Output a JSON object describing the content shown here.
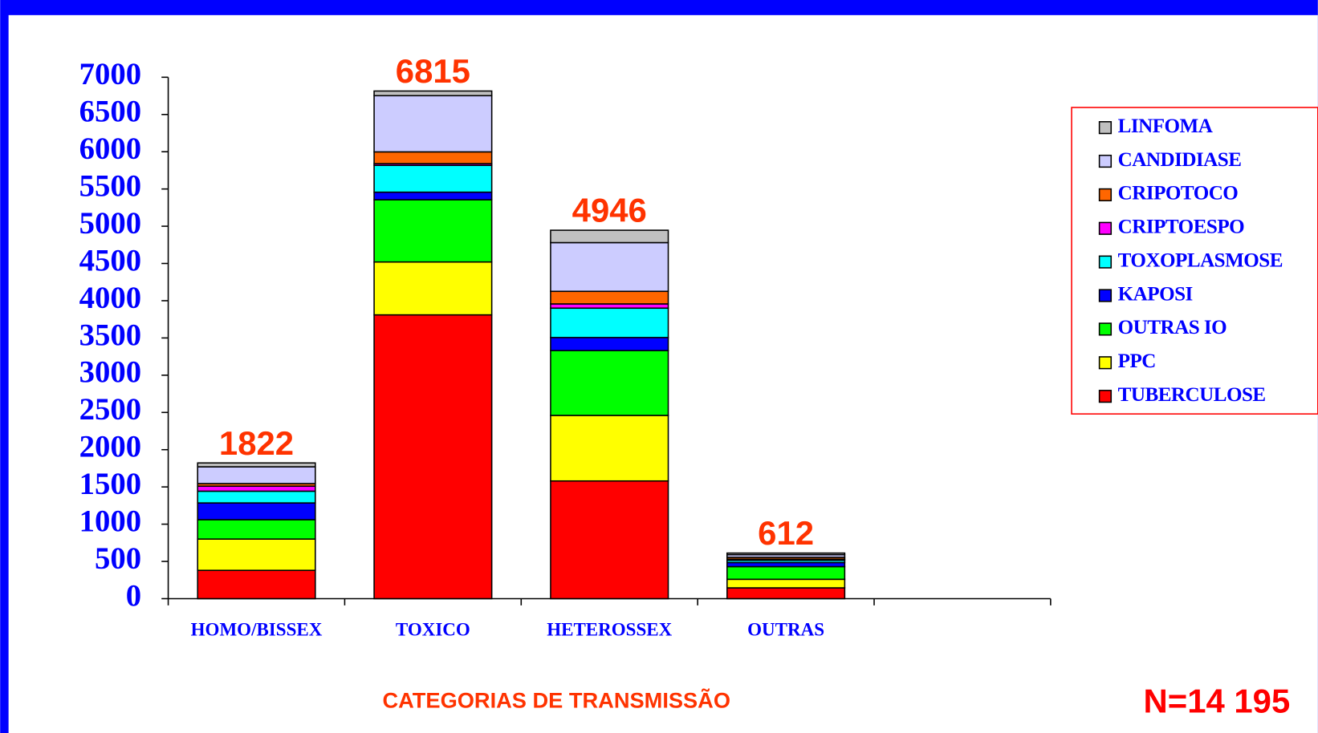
{
  "chart_data": {
    "type": "stacked_bar",
    "categories": [
      "HOMO/BISSEX",
      "TOXICO",
      "HETEROSSEX",
      "OUTRAS",
      null
    ],
    "series": [
      {
        "name": "TUBERCULOSE",
        "color": "#ff0000",
        "values": [
          380,
          3810,
          1580,
          145,
          null
        ]
      },
      {
        "name": "PPC",
        "color": "#ffff00",
        "values": [
          420,
          710,
          880,
          115,
          null
        ]
      },
      {
        "name": "OUTRAS IO",
        "color": "#00ff00",
        "values": [
          260,
          835,
          870,
          170,
          null
        ]
      },
      {
        "name": "KAPOSI",
        "color": "#0000ff",
        "values": [
          225,
          102,
          176,
          55,
          null
        ]
      },
      {
        "name": "TOXOPLASMOSE",
        "color": "#00ffff",
        "values": [
          158,
          360,
          394,
          30,
          null
        ]
      },
      {
        "name": "CRIPTOESPO",
        "color": "#ff00ff",
        "values": [
          67,
          23,
          57,
          15,
          null
        ]
      },
      {
        "name": "CRIPOTOCO",
        "color": "#ff6600",
        "values": [
          35,
          158,
          169,
          25,
          null
        ]
      },
      {
        "name": "CANDIDIASE",
        "color": "#ccccff",
        "values": [
          225,
          755,
          654,
          35,
          null
        ]
      },
      {
        "name": "LINFOMA",
        "color": "#c0c0c0",
        "values": [
          52,
          62,
          166,
          22,
          null
        ]
      }
    ],
    "totals": [
      1822,
      6815,
      4946,
      612,
      null
    ],
    "ylim": [
      0,
      7000
    ],
    "yticks": [
      0,
      500,
      1000,
      1500,
      2000,
      2500,
      3000,
      3500,
      4000,
      4500,
      5000,
      5500,
      6000,
      6500,
      7000
    ],
    "x_label": "CATEGORIAS DE TRANSMISSÃO",
    "note": "N=14 195",
    "legend": "right"
  }
}
